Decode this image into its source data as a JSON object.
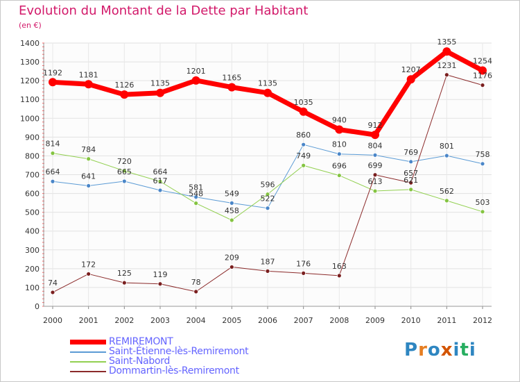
{
  "title": "Evolution du Montant de la Dette par Habitant",
  "unit": "(en €)",
  "logo": {
    "text": "Proxiti",
    "colors": [
      "#2e86c1",
      "#e67e22",
      "#2e86c1",
      "#d35400",
      "#2e86c1",
      "#27ae60",
      "#2e86c1"
    ]
  },
  "chart_data": {
    "type": "line",
    "x": [
      "2000",
      "2001",
      "2002",
      "2003",
      "2004",
      "2005",
      "2006",
      "2007",
      "2008",
      "2009",
      "2010",
      "2011",
      "2012"
    ],
    "ylim": [
      0,
      1400
    ],
    "yticks": [
      0,
      100,
      200,
      300,
      400,
      500,
      600,
      700,
      800,
      900,
      1000,
      1100,
      1200,
      1300,
      1400
    ],
    "grid": true,
    "legend_position": "bottom-left",
    "series": [
      {
        "name": "REMIREMONT",
        "color": "#ff0000",
        "marker": "#ff0000",
        "width": 7,
        "values": [
          1192,
          1181,
          1126,
          1135,
          1201,
          1165,
          1135,
          1035,
          940,
          912,
          1207,
          1355,
          1254
        ],
        "labels": [
          "1192",
          "1181",
          "1126",
          "1135",
          "1201",
          "1165",
          "1135",
          "1035",
          "940",
          "912",
          "1207",
          "1355",
          "1254"
        ]
      },
      {
        "name": "Saint-Étienne-lès-Remiremont",
        "color": "#5b9bd5",
        "marker": "#4a86c8",
        "width": 1,
        "values": [
          664,
          641,
          665,
          617,
          581,
          549,
          522,
          860,
          810,
          804,
          769,
          801,
          758
        ],
        "labels": [
          "664",
          "641",
          "665",
          "617",
          "581",
          "549",
          "522",
          "860",
          "810",
          "804",
          "769",
          "801",
          "758"
        ]
      },
      {
        "name": "Saint-Nabord",
        "color": "#92d050",
        "marker": "#84c441",
        "width": 1,
        "values": [
          814,
          784,
          720,
          664,
          548,
          458,
          596,
          749,
          696,
          613,
          621,
          562,
          503
        ],
        "labels": [
          "814",
          "784",
          "720",
          "664",
          "548",
          "458",
          "596",
          "749",
          "696",
          "613",
          "621",
          "562",
          "503"
        ]
      },
      {
        "name": "Dommartin-lès-Remiremont",
        "color": "#8b2a2a",
        "marker": "#7a1f1f",
        "width": 1,
        "values": [
          74,
          172,
          125,
          119,
          78,
          209,
          187,
          176,
          163,
          699,
          657,
          1231,
          1176
        ],
        "labels": [
          "74",
          "172",
          "125",
          "119",
          "78",
          "209",
          "187",
          "176",
          "163",
          "699",
          "657",
          "1231",
          "1176"
        ]
      }
    ]
  }
}
